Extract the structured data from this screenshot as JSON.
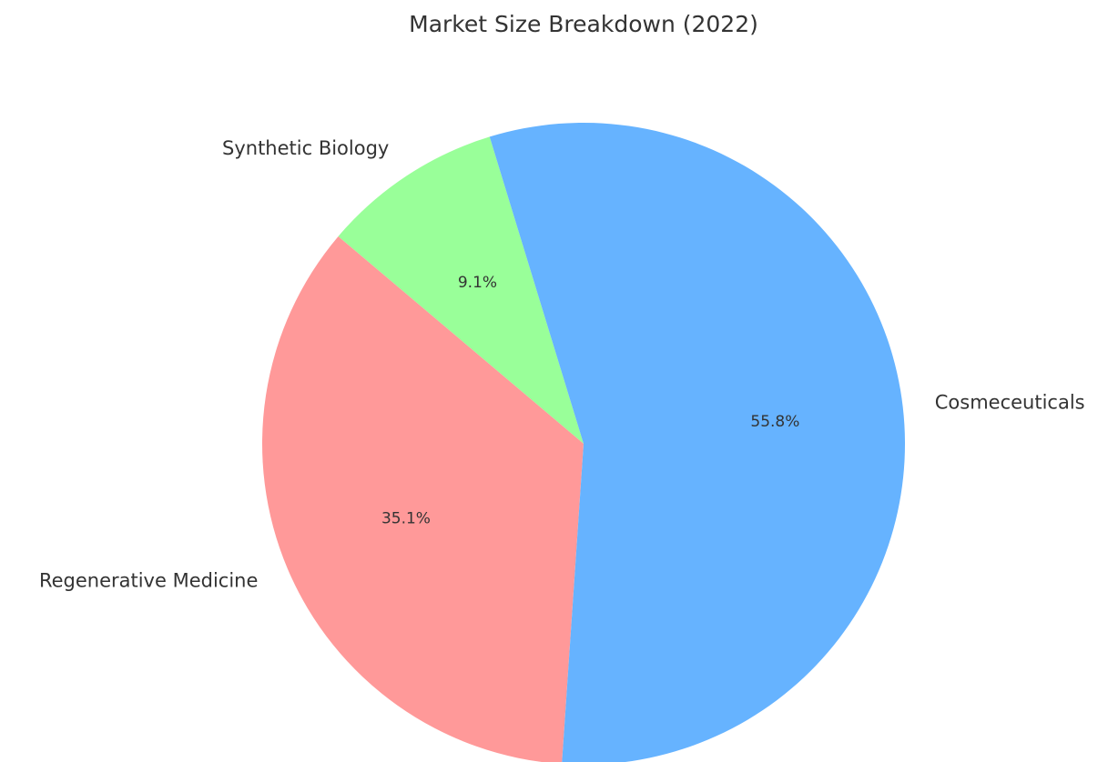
{
  "chart_data": {
    "type": "pie",
    "title": "Market Size Breakdown (2022)",
    "categories": [
      "Synthetic Biology",
      "Regenerative Medicine",
      "Cosmeceuticals"
    ],
    "values": [
      9.1,
      35.1,
      55.8
    ],
    "value_labels": [
      "9.1%",
      "35.1%",
      "55.8%"
    ],
    "colors": [
      "#99ff99",
      "#ff9999",
      "#66b3ff"
    ]
  }
}
